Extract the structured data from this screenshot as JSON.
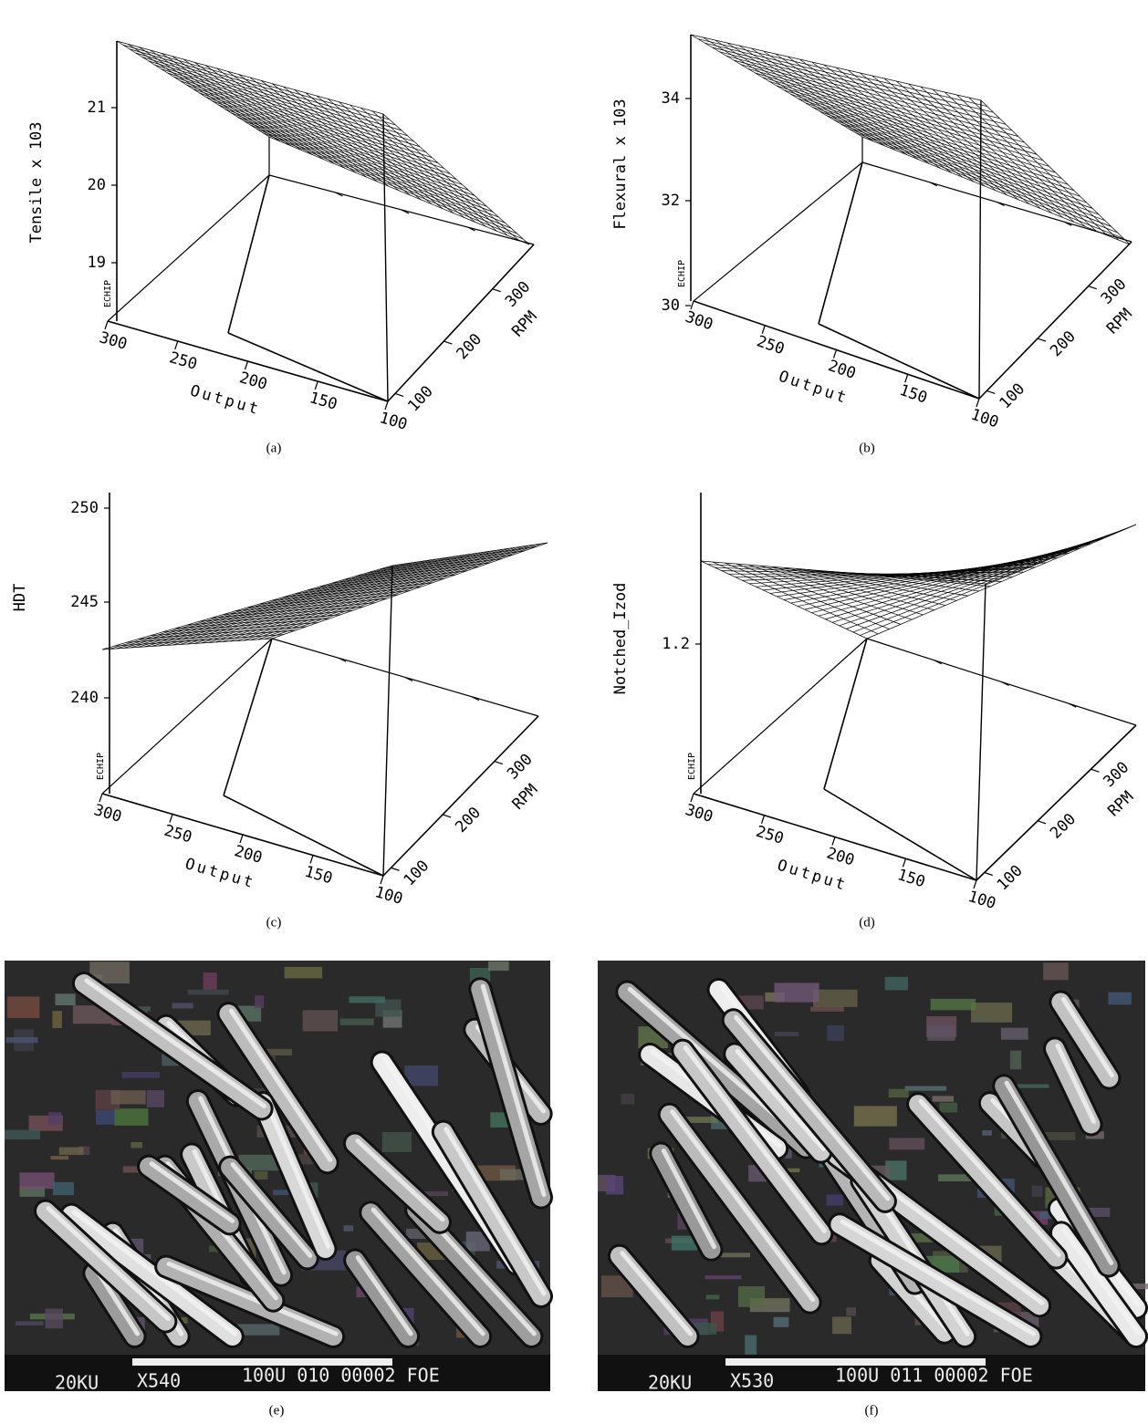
{
  "panels": [
    {
      "label": "(a)",
      "z_axis_label": "Tensile x 103",
      "z_ticks": [
        21,
        20,
        19
      ],
      "x_axis_label": "Output",
      "x_ticks": [
        300,
        250,
        200,
        150,
        100
      ],
      "y_axis_label": "RPM",
      "y_ticks": [
        100,
        200,
        300
      ],
      "watermark": "ECHIP"
    },
    {
      "label": "(b)",
      "z_axis_label": "Flexural x 103",
      "z_ticks": [
        34,
        32,
        30
      ],
      "x_axis_label": "Output",
      "x_ticks": [
        300,
        250,
        200,
        150,
        100
      ],
      "y_axis_label": "RPM",
      "y_ticks": [
        100,
        200,
        300
      ],
      "watermark": "ECHIP"
    },
    {
      "label": "(c)",
      "z_axis_label": "HDT",
      "z_ticks": [
        250,
        245,
        240
      ],
      "x_axis_label": "Output",
      "x_ticks": [
        300,
        250,
        200,
        150,
        100
      ],
      "y_axis_label": "RPM",
      "y_ticks": [
        100,
        200,
        300
      ],
      "watermark": "ECHIP"
    },
    {
      "label": "(d)",
      "z_axis_label": "Notched_Izod",
      "z_ticks": [
        1.2
      ],
      "x_axis_label": "Output",
      "x_ticks": [
        300,
        250,
        200,
        150,
        100
      ],
      "y_axis_label": "RPM",
      "y_ticks": [
        100,
        200,
        300
      ],
      "watermark": "ECHIP"
    }
  ],
  "micrographs": [
    {
      "label": "(e)",
      "voltage": "20KU",
      "magnification": "X540",
      "scale_info": "100U 010 00002 FOE"
    },
    {
      "label": "(f)",
      "voltage": "20KU",
      "magnification": "X530",
      "scale_info": "100U 011 00002 FOE"
    }
  ]
}
